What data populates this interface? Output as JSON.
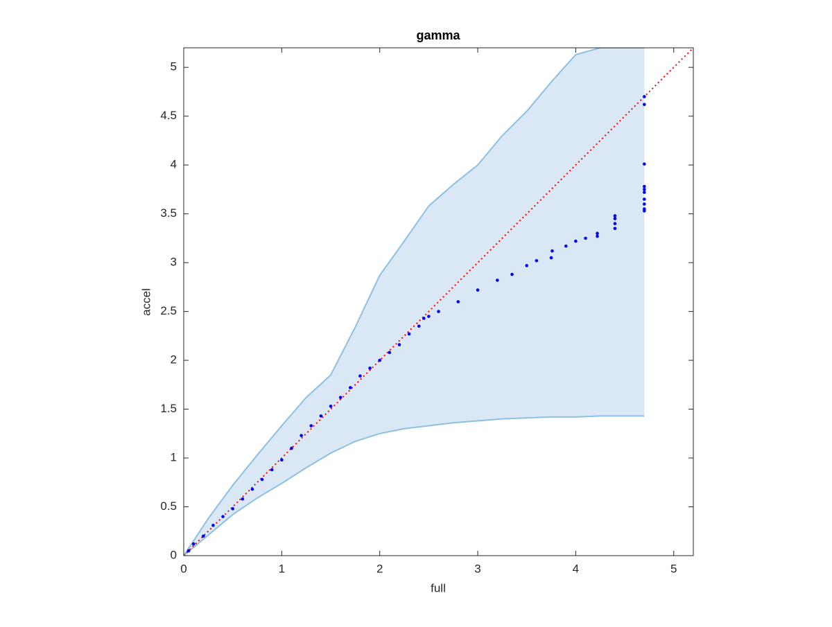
{
  "chart_data": {
    "type": "scatter",
    "title": "gamma",
    "xlabel": "full",
    "ylabel": "accel",
    "xlim": [
      0,
      5.2
    ],
    "ylim": [
      0,
      5.2
    ],
    "xticks": [
      0,
      1,
      2,
      3,
      4,
      5
    ],
    "yticks": [
      0,
      0.5,
      1,
      1.5,
      2,
      2.5,
      3,
      3.5,
      4,
      4.5,
      5
    ],
    "grid": false,
    "band": {
      "fill": "#d9e8f4",
      "color": "#8dbfe2",
      "x": [
        0,
        0.25,
        0.5,
        0.75,
        1,
        1.25,
        1.5,
        1.75,
        2,
        2.25,
        2.5,
        2.75,
        3,
        3.25,
        3.5,
        3.75,
        4,
        4.25,
        4.5,
        4.7
      ],
      "upper": [
        0,
        0.38,
        0.72,
        1.03,
        1.33,
        1.62,
        1.85,
        2.34,
        2.87,
        3.22,
        3.58,
        3.8,
        4.0,
        4.3,
        4.55,
        4.85,
        5.13,
        5.2,
        5.2,
        5.2
      ],
      "lower": [
        0,
        0.21,
        0.42,
        0.59,
        0.74,
        0.9,
        1.05,
        1.17,
        1.25,
        1.3,
        1.33,
        1.36,
        1.38,
        1.4,
        1.41,
        1.42,
        1.42,
        1.43,
        1.43,
        1.43
      ]
    },
    "reference": {
      "color": "#ff0000",
      "x": [
        0,
        5.2
      ],
      "values": [
        0,
        5.2
      ]
    },
    "series": [
      {
        "color": "#0000ff",
        "x": [
          0.05,
          0.1,
          0.2,
          0.3,
          0.4,
          0.5,
          0.6,
          0.7,
          0.8,
          0.9,
          1.0,
          1.1,
          1.2,
          1.3,
          1.4,
          1.5,
          1.6,
          1.7,
          1.8,
          1.9,
          2.0,
          2.1,
          2.2,
          2.3,
          2.4,
          2.45,
          2.5,
          2.6,
          2.8,
          3.0,
          3.2,
          3.35,
          3.5,
          3.6,
          3.75,
          3.76,
          3.9,
          4.0,
          4.1,
          4.22,
          4.22,
          4.4,
          4.4,
          4.4,
          4.4,
          4.7,
          4.7,
          4.7,
          4.7,
          4.7,
          4.7,
          4.7,
          4.7,
          4.7,
          4.7
        ],
        "values": [
          0.05,
          0.12,
          0.2,
          0.31,
          0.4,
          0.48,
          0.58,
          0.68,
          0.78,
          0.88,
          0.98,
          1.1,
          1.23,
          1.33,
          1.43,
          1.53,
          1.62,
          1.72,
          1.84,
          1.92,
          2.0,
          2.08,
          2.16,
          2.27,
          2.35,
          2.43,
          2.45,
          2.5,
          2.6,
          2.72,
          2.82,
          2.88,
          2.97,
          3.02,
          3.05,
          3.12,
          3.17,
          3.22,
          3.25,
          3.3,
          3.27,
          3.35,
          3.4,
          3.45,
          3.48,
          3.53,
          3.55,
          3.6,
          3.65,
          3.72,
          3.75,
          3.78,
          4.01,
          4.62,
          4.7
        ]
      }
    ]
  }
}
